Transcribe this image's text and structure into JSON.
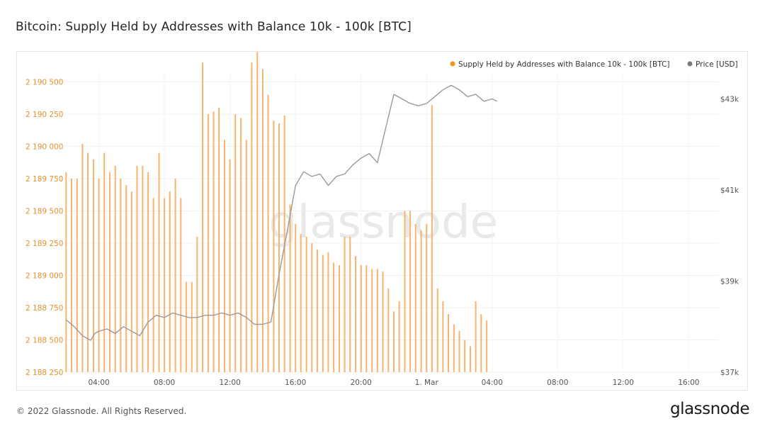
{
  "page": {
    "title": "Bitcoin: Supply Held by Addresses with Balance 10k - 100k [BTC]",
    "copyright": "© 2022 Glassnode. All Rights Reserved.",
    "logo_text": "glassnode",
    "watermark_text": "glassnode"
  },
  "chart_data": {
    "type": "bar",
    "title": "Bitcoin: Supply Held by Addresses with Balance 10k - 100k [BTC]",
    "legend": [
      {
        "label": "Supply Held by Addresses with Balance 10k - 100k [BTC]",
        "color": "#f7931a"
      },
      {
        "label": "Price [USD]",
        "color": "#7a7a7a"
      }
    ],
    "legend_position": "top-right",
    "grid": true,
    "x_ticks": [
      "04:00",
      "08:00",
      "12:00",
      "16:00",
      "20:00",
      "1. Mar",
      "04:00",
      "08:00",
      "12:00",
      "16:00"
    ],
    "x_range_hours": [
      1.9,
      41.8
    ],
    "y_left": {
      "ticks": [
        "2 188 250",
        "2 188 500",
        "2 188 750",
        "2 189 000",
        "2 189 250",
        "2 189 500",
        "2 189 750",
        "2 190 000",
        "2 190 250",
        "2 190 500"
      ],
      "range": [
        2188250,
        2190580
      ],
      "color": "#e8902c"
    },
    "y_right": {
      "ticks": [
        "$37k",
        "$39k",
        "$41k",
        "$43k"
      ],
      "range": [
        37000,
        43600
      ]
    },
    "series": [
      {
        "name": "Supply Held by Addresses with Balance 10k - 100k [BTC]",
        "kind": "bar",
        "color": "#f8b46b",
        "x_hours": [
          2.0,
          2.33,
          2.67,
          3.0,
          3.33,
          3.67,
          4.0,
          4.33,
          4.67,
          5.0,
          5.33,
          5.67,
          6.0,
          6.33,
          6.67,
          7.0,
          7.33,
          7.67,
          8.0,
          8.33,
          8.67,
          9.0,
          9.33,
          9.67,
          10.0,
          10.33,
          10.67,
          11.0,
          11.33,
          11.67,
          12.0,
          12.33,
          12.67,
          13.0,
          13.33,
          13.67,
          14.0,
          14.33,
          14.67,
          15.0,
          15.33,
          15.67,
          16.0,
          16.33,
          16.67,
          17.0,
          17.33,
          17.67,
          18.0,
          18.33,
          18.67,
          19.0,
          19.33,
          19.67,
          20.0,
          20.33,
          20.67,
          21.0,
          21.33,
          21.67,
          22.0,
          22.33,
          22.67,
          23.0,
          23.33,
          23.67,
          24.0,
          24.33,
          24.67,
          25.0,
          25.33,
          25.67,
          26.0,
          26.33,
          26.67,
          27.0,
          27.33,
          27.67
        ],
        "values": [
          2189800,
          2189750,
          2189750,
          2190020,
          2189950,
          2189900,
          2189750,
          2189950,
          2189800,
          2189850,
          2189750,
          2189700,
          2189650,
          2189850,
          2189850,
          2189800,
          2189600,
          2189950,
          2189600,
          2189650,
          2189750,
          2189600,
          2188950,
          2188950,
          2189300,
          2190650,
          2190250,
          2190270,
          2190300,
          2190050,
          2189900,
          2190250,
          2190220,
          2190050,
          2190650,
          2190900,
          2190600,
          2190400,
          2190200,
          2190180,
          2190240,
          2189550,
          2189400,
          2189320,
          2189300,
          2189250,
          2189200,
          2189160,
          2189180,
          2189100,
          2189080,
          2189300,
          2189300,
          2189150,
          2189080,
          2189080,
          2189050,
          2189050,
          2189030,
          2188900,
          2188720,
          2188800,
          2189500,
          2189500,
          2189400,
          2189350,
          2189400,
          2190320,
          2188900,
          2188800,
          2188700,
          2188620,
          2188570,
          2188500,
          2188450,
          2188800,
          2188700,
          2188650
        ]
      },
      {
        "name": "Price [USD]",
        "kind": "line",
        "color": "#9a9a9a",
        "x_hours": [
          2.0,
          2.5,
          3.0,
          3.5,
          3.75,
          4.0,
          4.5,
          5.0,
          5.5,
          6.0,
          6.5,
          7.0,
          7.5,
          8.0,
          8.5,
          9.0,
          9.5,
          10.0,
          10.5,
          11.0,
          11.5,
          12.0,
          12.5,
          13.0,
          13.5,
          14.0,
          14.5,
          15.0,
          15.5,
          16.0,
          16.5,
          17.0,
          17.5,
          18.0,
          18.5,
          19.0,
          19.5,
          20.0,
          20.5,
          21.0,
          21.5,
          22.0,
          22.5,
          23.0,
          23.5,
          24.0,
          24.5,
          25.0,
          25.5,
          26.0,
          26.5,
          27.0,
          27.5,
          28.0,
          28.3
        ],
        "values": [
          38150,
          38000,
          37800,
          37700,
          37850,
          37900,
          37950,
          37850,
          38000,
          37900,
          37800,
          38100,
          38250,
          38200,
          38300,
          38250,
          38200,
          38200,
          38250,
          38250,
          38300,
          38250,
          38300,
          38200,
          38050,
          38050,
          38100,
          39150,
          40100,
          41100,
          41400,
          41300,
          41350,
          41100,
          41300,
          41350,
          41550,
          41700,
          41800,
          41600,
          42350,
          43100,
          43000,
          42900,
          42850,
          42900,
          43050,
          43200,
          43300,
          43200,
          43050,
          43100,
          42950,
          43000,
          42950
        ]
      }
    ]
  }
}
